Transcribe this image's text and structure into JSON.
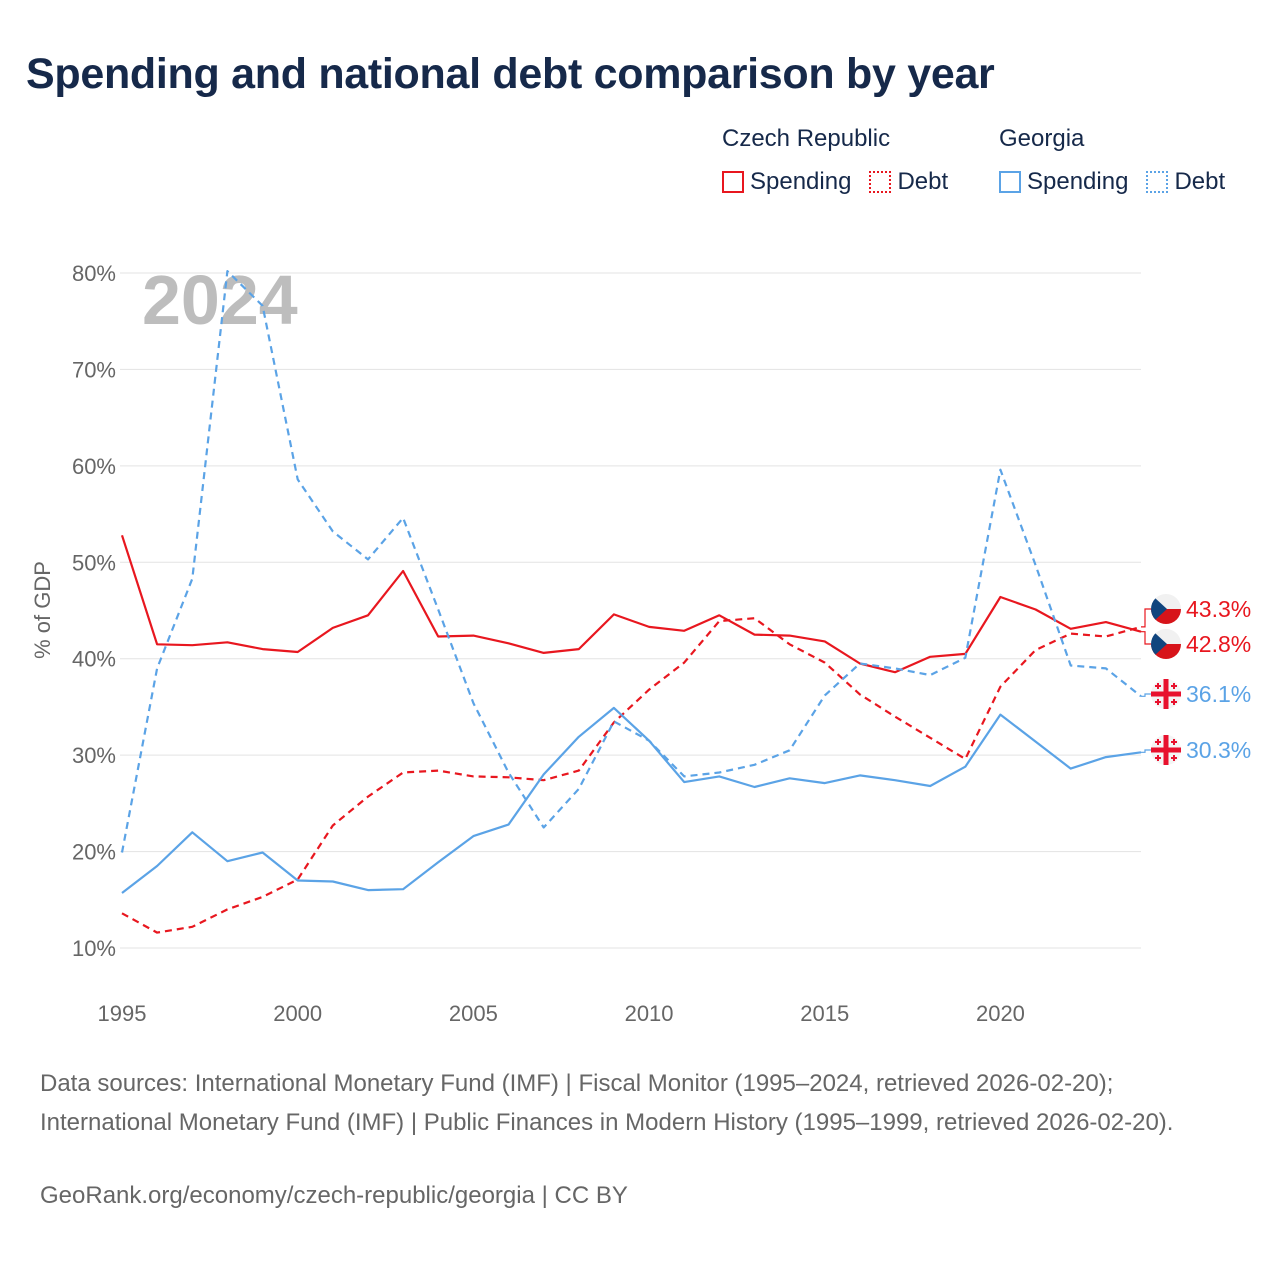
{
  "title": "Spending and national debt comparison by year",
  "legend": {
    "groups": [
      {
        "country": "Czech Republic",
        "items": [
          {
            "label": "Spending",
            "style": "solid",
            "color": "#e8171f"
          },
          {
            "label": "Debt",
            "style": "dotted",
            "color": "#e8171f"
          }
        ]
      },
      {
        "country": "Georgia",
        "items": [
          {
            "label": "Spending",
            "style": "solid",
            "color": "#5ba3e6"
          },
          {
            "label": "Debt",
            "style": "dotted",
            "color": "#5ba3e6"
          }
        ]
      }
    ]
  },
  "colors": {
    "czech": "#e8171f",
    "georgia": "#5ba3e6",
    "grid": "#e3e3e3",
    "axis_text": "#666666",
    "year_watermark": "#bdbdbd"
  },
  "footer": {
    "sources": "Data sources: International Monetary Fund (IMF) | Fiscal Monitor (1995–2024, retrieved 2026-02-20); International Monetary Fund (IMF) | Public Finances in Modern History (1995–1999, retrieved 2026-02-20).",
    "credit": "GeoRank.org/economy/czech-republic/georgia | CC BY"
  },
  "chart_data": {
    "type": "line",
    "year_label": "2024",
    "ylabel": "% of GDP",
    "xlabel": "",
    "ylim": [
      10,
      80
    ],
    "yticks": [
      10,
      20,
      30,
      40,
      50,
      60,
      70,
      80
    ],
    "ytick_labels": [
      "10%",
      "20%",
      "30%",
      "40%",
      "50%",
      "60%",
      "70%",
      "80%"
    ],
    "xlim": [
      1995,
      2024
    ],
    "xticks": [
      1995,
      2000,
      2005,
      2010,
      2015,
      2020
    ],
    "xtick_labels": [
      "1995",
      "2000",
      "2005",
      "2010",
      "2015",
      "2020"
    ],
    "grid": true,
    "x": [
      1995,
      1996,
      1997,
      1998,
      1999,
      2000,
      2001,
      2002,
      2003,
      2004,
      2005,
      2006,
      2007,
      2008,
      2009,
      2010,
      2011,
      2012,
      2013,
      2014,
      2015,
      2016,
      2017,
      2018,
      2019,
      2020,
      2021,
      2022,
      2023,
      2024
    ],
    "series": [
      {
        "key": "cz_spending",
        "name": "Czech Republic Spending",
        "country": "czech",
        "dash": "solid",
        "values": [
          52.8,
          41.5,
          41.4,
          41.7,
          41.0,
          40.7,
          43.2,
          44.5,
          49.1,
          42.3,
          42.4,
          41.6,
          40.6,
          41.0,
          44.6,
          43.3,
          42.9,
          44.5,
          42.5,
          42.4,
          41.8,
          39.5,
          38.6,
          40.2,
          40.5,
          46.4,
          45.1,
          43.1,
          43.8,
          42.8
        ],
        "end_label": "42.8%"
      },
      {
        "key": "cz_debt",
        "name": "Czech Republic Debt",
        "country": "czech",
        "dash": "dashed",
        "values": [
          13.6,
          11.6,
          12.2,
          14.0,
          15.3,
          17.1,
          22.7,
          25.7,
          28.2,
          28.4,
          27.8,
          27.7,
          27.4,
          28.4,
          33.4,
          36.8,
          39.6,
          43.9,
          44.2,
          41.5,
          39.6,
          36.3,
          34.0,
          31.8,
          29.6,
          37.1,
          40.9,
          42.6,
          42.3,
          43.3
        ],
        "end_label": "43.3%"
      },
      {
        "key": "ge_spending",
        "name": "Georgia Spending",
        "country": "georgia",
        "dash": "solid",
        "values": [
          15.7,
          18.5,
          22.0,
          19.0,
          19.9,
          17.0,
          16.9,
          16.0,
          16.1,
          18.9,
          21.6,
          22.8,
          28.0,
          31.9,
          34.9,
          31.5,
          27.2,
          27.8,
          26.7,
          27.6,
          27.1,
          27.9,
          27.4,
          26.8,
          28.8,
          34.2,
          31.4,
          28.6,
          29.8,
          30.3
        ],
        "end_label": "30.3%"
      },
      {
        "key": "ge_debt",
        "name": "Georgia Debt",
        "country": "georgia",
        "dash": "dashed",
        "values": [
          19.9,
          39.0,
          48.3,
          80.2,
          76.6,
          58.6,
          53.2,
          50.3,
          54.6,
          45.1,
          35.4,
          28.2,
          22.5,
          26.5,
          33.5,
          31.5,
          27.8,
          28.2,
          29.0,
          30.5,
          36.2,
          39.5,
          39.0,
          38.3,
          40.1,
          59.6,
          49.7,
          39.3,
          39.0,
          36.1
        ],
        "end_label": "36.1%"
      }
    ]
  }
}
